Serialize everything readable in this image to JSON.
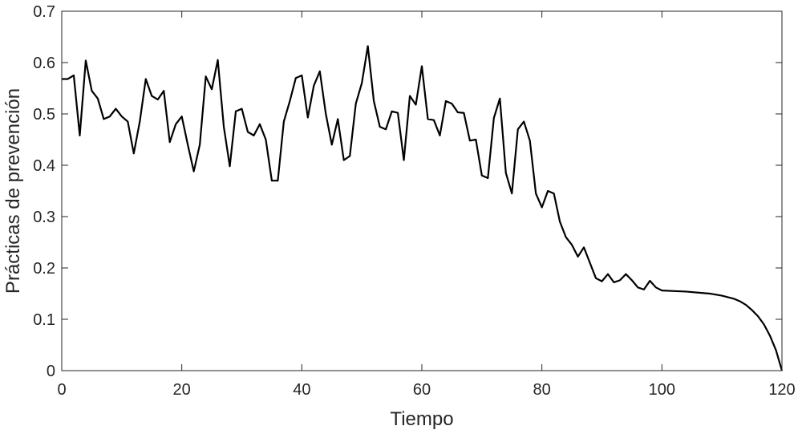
{
  "chart_data": {
    "type": "line",
    "xlabel": "Tiempo",
    "ylabel": "Prácticas de prevención",
    "xlim": [
      0,
      120
    ],
    "ylim": [
      0,
      0.7
    ],
    "xticks": [
      0,
      20,
      40,
      60,
      80,
      100,
      120
    ],
    "xtick_labels": [
      "0",
      "20",
      "40",
      "60",
      "80",
      "100",
      "120"
    ],
    "yticks": [
      0,
      0.1,
      0.2,
      0.3,
      0.4,
      0.5,
      0.6,
      0.7
    ],
    "ytick_labels": [
      "0",
      "0.1",
      "0.2",
      "0.3",
      "0.4",
      "0.5",
      "0.6",
      "0.7"
    ],
    "grid": false,
    "line_color": "#000000",
    "series": [
      {
        "x": [
          0,
          1,
          2,
          3,
          4,
          5,
          6,
          7,
          8,
          9,
          10,
          11,
          12,
          13,
          14,
          15,
          16,
          17,
          18,
          19,
          20,
          21,
          22,
          23,
          24,
          25,
          26,
          27,
          28,
          29,
          30,
          31,
          32,
          33,
          34,
          35,
          36,
          37,
          38,
          39,
          40,
          41,
          42,
          43,
          44,
          45,
          46,
          47,
          48,
          49,
          50,
          51,
          52,
          53,
          54,
          55,
          56,
          57,
          58,
          59,
          60,
          61,
          62,
          63,
          64,
          65,
          66,
          67,
          68,
          69,
          70,
          71,
          72,
          73,
          74,
          75,
          76,
          77,
          78,
          79,
          80,
          81,
          82,
          83,
          84,
          85,
          86,
          87,
          88,
          89,
          90,
          91,
          92,
          93,
          94,
          95,
          96,
          97,
          98,
          99,
          100,
          102,
          104,
          106,
          108,
          110,
          112,
          113,
          114,
          115,
          116,
          117,
          118,
          119,
          120
        ],
        "y": [
          0.568,
          0.568,
          0.575,
          0.458,
          0.604,
          0.545,
          0.53,
          0.49,
          0.495,
          0.51,
          0.495,
          0.485,
          0.423,
          0.485,
          0.568,
          0.535,
          0.528,
          0.545,
          0.445,
          0.48,
          0.495,
          0.44,
          0.388,
          0.44,
          0.573,
          0.548,
          0.605,
          0.475,
          0.398,
          0.505,
          0.51,
          0.465,
          0.458,
          0.48,
          0.45,
          0.37,
          0.37,
          0.485,
          0.525,
          0.57,
          0.575,
          0.493,
          0.555,
          0.583,
          0.5,
          0.44,
          0.49,
          0.41,
          0.418,
          0.52,
          0.56,
          0.632,
          0.525,
          0.475,
          0.47,
          0.505,
          0.502,
          0.41,
          0.535,
          0.518,
          0.593,
          0.49,
          0.488,
          0.458,
          0.525,
          0.52,
          0.503,
          0.502,
          0.448,
          0.45,
          0.38,
          0.375,
          0.492,
          0.53,
          0.385,
          0.345,
          0.47,
          0.485,
          0.448,
          0.345,
          0.318,
          0.35,
          0.345,
          0.29,
          0.26,
          0.245,
          0.222,
          0.24,
          0.21,
          0.18,
          0.174,
          0.188,
          0.172,
          0.176,
          0.188,
          0.176,
          0.162,
          0.158,
          0.175,
          0.162,
          0.156,
          0.155,
          0.154,
          0.152,
          0.15,
          0.146,
          0.14,
          0.135,
          0.128,
          0.118,
          0.106,
          0.09,
          0.068,
          0.04,
          0.0
        ]
      }
    ]
  }
}
